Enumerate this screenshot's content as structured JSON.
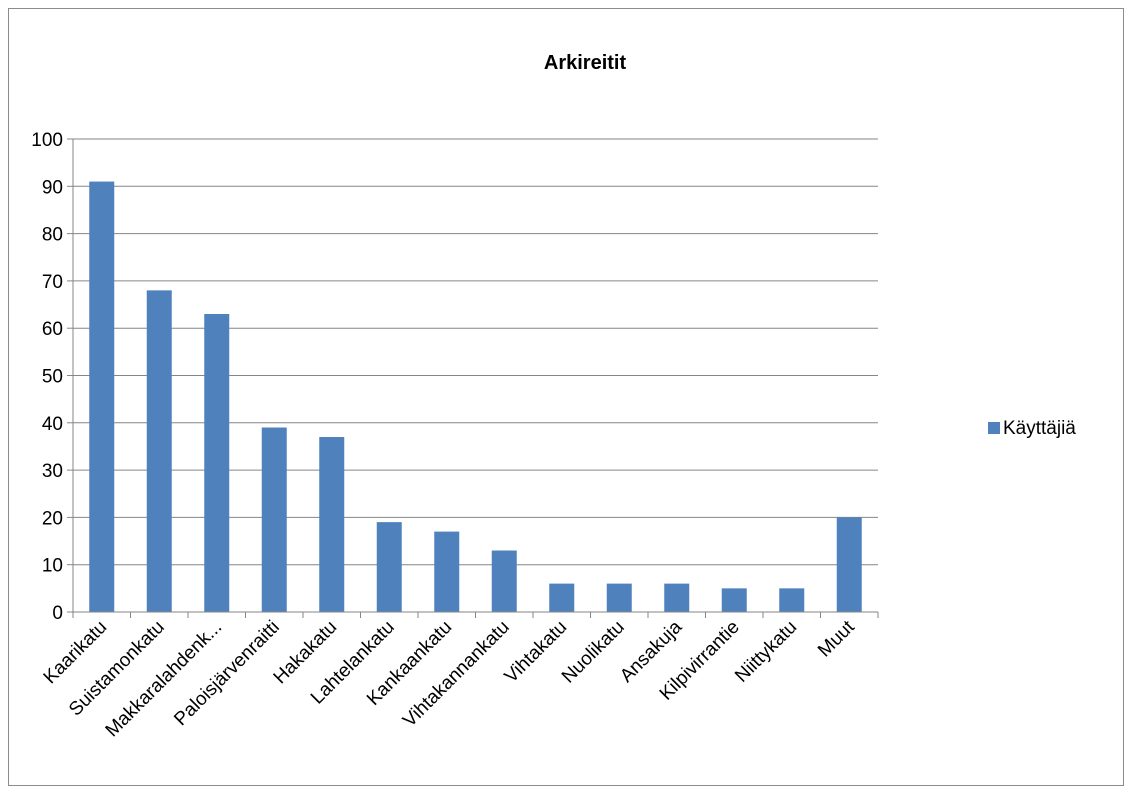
{
  "chart_data": {
    "type": "bar",
    "title": "Arkireitit",
    "xlabel": "",
    "ylabel": "",
    "categories": [
      "Kaarikatu",
      "Suistamonkatu",
      "Makkaralahdenk...",
      "Paloisjärvenraitti",
      "Hakakatu",
      "Lahtelankatu",
      "Kankaankatu",
      "Vihtakannankatu",
      "Vihtakatu",
      "Nuolikatu",
      "Ansakuja",
      "Kilpivirrantie",
      "Niittykatu",
      "Muut"
    ],
    "series": [
      {
        "name": "Käyttäjiä",
        "color": "#4f81bd",
        "values": [
          91,
          68,
          63,
          39,
          37,
          19,
          17,
          13,
          6,
          6,
          6,
          5,
          5,
          20
        ]
      }
    ],
    "ylim": [
      0,
      100
    ],
    "yticks": [
      0,
      10,
      20,
      30,
      40,
      50,
      60,
      70,
      80,
      90,
      100
    ],
    "grid": true,
    "legend_position": "right"
  }
}
